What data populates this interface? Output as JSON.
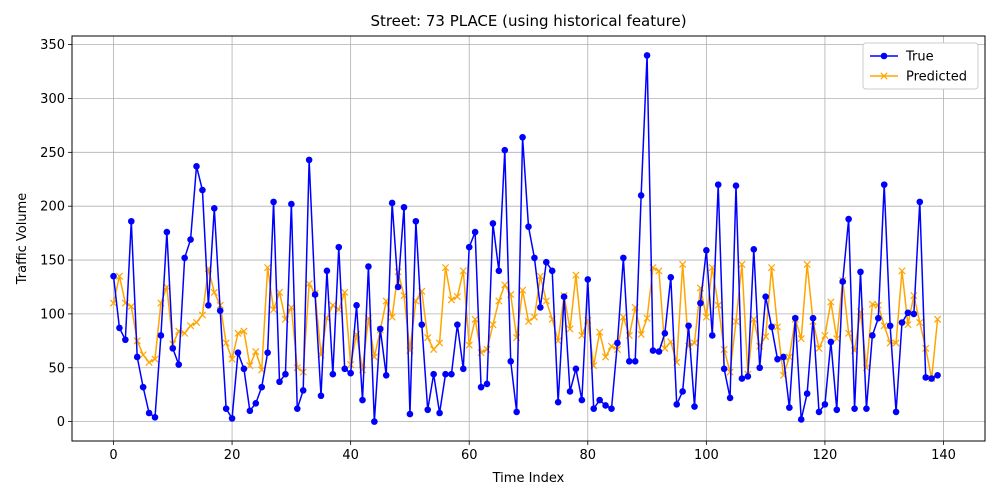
{
  "chart_data": {
    "type": "line",
    "title": "Street: 73 PLACE (using historical feature)",
    "xlabel": "Time Index",
    "ylabel": "Traffic Volume",
    "xlim": [
      -7,
      147
    ],
    "ylim": [
      -18,
      358
    ],
    "x_ticks": [
      0,
      20,
      40,
      60,
      80,
      100,
      120,
      140
    ],
    "y_ticks": [
      0,
      50,
      100,
      150,
      200,
      250,
      300,
      350
    ],
    "grid": true,
    "legend_position": "top-right",
    "series": [
      {
        "name": "True",
        "color": "#0000ff",
        "marker": "circle",
        "values": [
          135,
          87,
          76,
          186,
          60,
          32,
          8,
          4,
          80,
          176,
          68,
          53,
          152,
          169,
          237,
          215,
          108,
          198,
          103,
          12,
          3,
          64,
          49,
          10,
          17,
          32,
          64,
          204,
          37,
          44,
          202,
          12,
          29,
          243,
          118,
          24,
          140,
          44,
          162,
          49,
          45,
          108,
          20,
          144,
          0,
          86,
          43,
          203,
          125,
          199,
          7,
          186,
          90,
          11,
          44,
          8,
          44,
          44,
          90,
          49,
          162,
          176,
          32,
          35,
          184,
          140,
          252,
          56,
          9,
          264,
          181,
          152,
          106,
          148,
          140,
          18,
          116,
          28,
          49,
          20,
          132,
          12,
          20,
          15,
          12,
          73,
          152,
          56,
          56,
          210,
          340,
          66,
          65,
          82,
          134,
          16,
          28,
          89,
          14,
          110,
          159,
          80,
          220,
          49,
          22,
          219,
          40,
          42,
          160,
          50,
          116,
          88,
          58,
          60,
          13,
          96,
          2,
          26,
          96,
          9,
          16,
          74,
          11,
          130,
          188,
          12,
          139,
          12,
          80,
          96,
          220,
          89,
          9,
          92,
          101,
          100,
          204,
          41,
          40,
          43
        ]
      },
      {
        "name": "Predicted",
        "color": "#ffa500",
        "marker": "x",
        "values": [
          110,
          135,
          110,
          107,
          75,
          62,
          55,
          58,
          110,
          125,
          72,
          84,
          82,
          89,
          92,
          99,
          142,
          120,
          108,
          73,
          58,
          82,
          84,
          52,
          65,
          48,
          143,
          104,
          120,
          95,
          106,
          50,
          46,
          128,
          119,
          62,
          96,
          108,
          104,
          120,
          53,
          81,
          48,
          96,
          60,
          85,
          112,
          97,
          139,
          117,
          66,
          112,
          121,
          78,
          67,
          73,
          143,
          113,
          116,
          140,
          71,
          95,
          64,
          67,
          90,
          112,
          127,
          118,
          78,
          122,
          93,
          97,
          135,
          112,
          95,
          75,
          117,
          86,
          136,
          80,
          94,
          52,
          83,
          60,
          70,
          67,
          97,
          80,
          106,
          81,
          96,
          143,
          140,
          68,
          74,
          55,
          146,
          70,
          73,
          124,
          97,
          143,
          108,
          67,
          46,
          93,
          146,
          44,
          95,
          70,
          79,
          143,
          88,
          43,
          60,
          95,
          77,
          146,
          93,
          68,
          80,
          111,
          77,
          131,
          82,
          66,
          102,
          50,
          109,
          108,
          89,
          73,
          73,
          140,
          90,
          117,
          92,
          68,
          40,
          95
        ]
      }
    ]
  }
}
